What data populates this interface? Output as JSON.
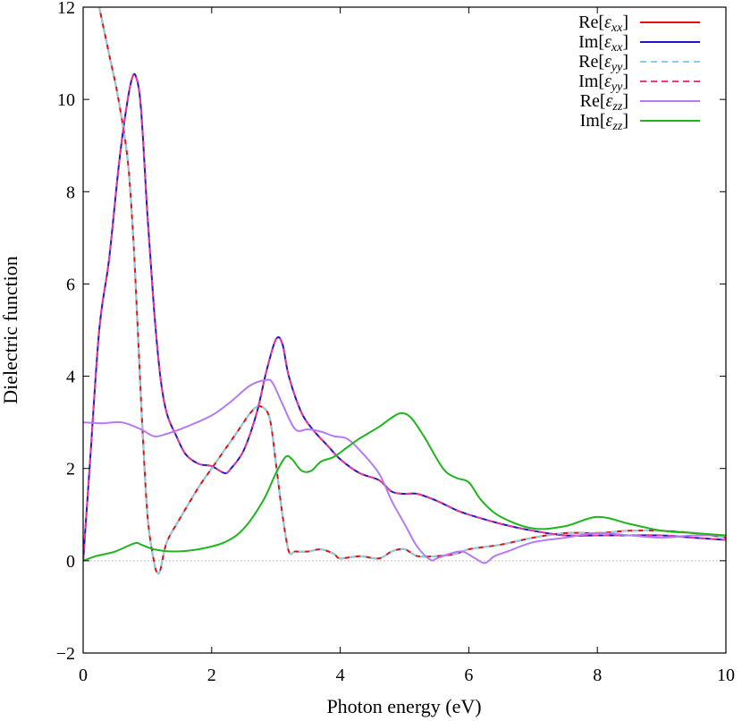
{
  "chart_data": {
    "type": "line",
    "title": "",
    "xlabel": "Photon energy (eV)",
    "ylabel": "Dielectric function",
    "xlim": [
      0,
      10
    ],
    "ylim": [
      -2,
      12
    ],
    "xticks": [
      0,
      2,
      4,
      6,
      8,
      10
    ],
    "yticks": [
      -2,
      0,
      2,
      4,
      6,
      8,
      10,
      12
    ],
    "xtick_labels": [
      "0",
      "2",
      "4",
      "6",
      "8",
      "10"
    ],
    "ytick_labels": [
      "−2",
      "0",
      "2",
      "4",
      "6",
      "8",
      "10",
      "12"
    ],
    "grid": false,
    "zero_line": true,
    "legend_position": "top-right",
    "series": [
      {
        "name": "Re[εxx]",
        "legend_prefix": "Re[",
        "legend_sym": "ε",
        "legend_sub": "xx",
        "legend_suffix": "]",
        "color": "#dd1111",
        "dash": "solid",
        "x": [
          0.25,
          0.4,
          0.55,
          0.7,
          0.8,
          0.9,
          1.0,
          1.1,
          1.15,
          1.2,
          1.3,
          1.5,
          1.8,
          2.0,
          2.2,
          2.4,
          2.6,
          2.75,
          2.9,
          3.0,
          3.1,
          3.2,
          3.3,
          3.5,
          3.7,
          3.9,
          4.0,
          4.3,
          4.6,
          4.8,
          5.0,
          5.2,
          5.5,
          5.8,
          6.0,
          6.5,
          7.0,
          7.5,
          8.0,
          8.5,
          9.0,
          9.5,
          10.0
        ],
        "y": [
          12.0,
          11.0,
          10.0,
          8.6,
          6.5,
          3.5,
          1.0,
          0.0,
          -0.25,
          -0.2,
          0.4,
          0.9,
          1.6,
          2.0,
          2.4,
          2.8,
          3.2,
          3.35,
          3.1,
          2.1,
          1.0,
          0.2,
          0.2,
          0.2,
          0.25,
          0.15,
          0.05,
          0.1,
          0.05,
          0.2,
          0.25,
          0.1,
          0.1,
          0.15,
          0.25,
          0.35,
          0.5,
          0.6,
          0.6,
          0.65,
          0.65,
          0.6,
          0.5
        ]
      },
      {
        "name": "Im[εxx]",
        "legend_prefix": "Im[",
        "legend_sym": "ε",
        "legend_sub": "xx",
        "legend_suffix": "]",
        "color": "#1a1acc",
        "dash": "solid",
        "x": [
          0.0,
          0.1,
          0.25,
          0.4,
          0.55,
          0.65,
          0.75,
          0.82,
          0.9,
          1.0,
          1.1,
          1.2,
          1.3,
          1.45,
          1.6,
          1.8,
          2.0,
          2.2,
          2.3,
          2.5,
          2.7,
          2.85,
          3.0,
          3.1,
          3.2,
          3.4,
          3.6,
          3.8,
          4.0,
          4.3,
          4.6,
          4.8,
          5.0,
          5.2,
          5.5,
          5.8,
          6.0,
          6.5,
          7.0,
          7.5,
          8.0,
          8.5,
          9.0,
          9.5,
          10.0
        ],
        "y": [
          0.0,
          2.0,
          5.0,
          6.5,
          8.5,
          9.6,
          10.4,
          10.5,
          9.8,
          7.5,
          5.5,
          4.0,
          3.2,
          2.7,
          2.3,
          2.1,
          2.05,
          1.9,
          2.0,
          2.4,
          3.2,
          4.1,
          4.8,
          4.7,
          4.0,
          3.2,
          2.8,
          2.5,
          2.2,
          1.9,
          1.75,
          1.5,
          1.45,
          1.45,
          1.3,
          1.1,
          1.0,
          0.8,
          0.65,
          0.55,
          0.55,
          0.55,
          0.55,
          0.5,
          0.45
        ]
      },
      {
        "name": "Re[εyy]",
        "legend_prefix": "Re[",
        "legend_sym": "ε",
        "legend_sub": "yy",
        "legend_suffix": "]",
        "color": "#8fcde0",
        "dash": "dashed",
        "x": [
          0.25,
          0.4,
          0.55,
          0.7,
          0.8,
          0.9,
          1.0,
          1.1,
          1.15,
          1.2,
          1.3,
          1.5,
          1.8,
          2.0,
          2.2,
          2.4,
          2.6,
          2.75,
          2.9,
          3.0,
          3.1,
          3.2,
          3.3,
          3.5,
          3.7,
          3.9,
          4.0,
          4.3,
          4.6,
          4.8,
          5.0,
          5.2,
          5.5,
          5.8,
          6.0,
          6.5,
          7.0,
          7.5,
          8.0,
          8.5,
          9.0,
          9.5,
          10.0
        ],
        "y": [
          12.0,
          11.0,
          10.0,
          8.6,
          6.5,
          3.5,
          1.0,
          0.0,
          -0.25,
          -0.2,
          0.4,
          0.9,
          1.6,
          2.0,
          2.4,
          2.8,
          3.2,
          3.35,
          3.1,
          2.1,
          1.0,
          0.2,
          0.2,
          0.2,
          0.25,
          0.15,
          0.05,
          0.1,
          0.05,
          0.2,
          0.25,
          0.1,
          0.1,
          0.15,
          0.25,
          0.35,
          0.5,
          0.6,
          0.6,
          0.65,
          0.65,
          0.6,
          0.5
        ]
      },
      {
        "name": "Im[εyy]",
        "legend_prefix": "Im[",
        "legend_sym": "ε",
        "legend_sub": "yy",
        "legend_suffix": "]",
        "color": "#e8398f",
        "dash": "dashed",
        "x": [
          0.0,
          0.1,
          0.25,
          0.4,
          0.55,
          0.65,
          0.75,
          0.82,
          0.9,
          1.0,
          1.1,
          1.2,
          1.3,
          1.45,
          1.6,
          1.8,
          2.0,
          2.2,
          2.3,
          2.5,
          2.7,
          2.85,
          3.0,
          3.1,
          3.2,
          3.4,
          3.6,
          3.8,
          4.0,
          4.3,
          4.6,
          4.8,
          5.0,
          5.2,
          5.5,
          5.8,
          6.0,
          6.5,
          7.0,
          7.5,
          8.0,
          8.5,
          9.0,
          9.5,
          10.0
        ],
        "y": [
          0.0,
          2.0,
          5.0,
          6.5,
          8.5,
          9.6,
          10.4,
          10.5,
          9.8,
          7.5,
          5.5,
          4.0,
          3.2,
          2.7,
          2.3,
          2.1,
          2.05,
          1.9,
          2.0,
          2.4,
          3.2,
          4.1,
          4.8,
          4.7,
          4.0,
          3.2,
          2.8,
          2.5,
          2.2,
          1.9,
          1.75,
          1.5,
          1.45,
          1.45,
          1.3,
          1.1,
          1.0,
          0.8,
          0.65,
          0.55,
          0.55,
          0.55,
          0.55,
          0.5,
          0.45
        ]
      },
      {
        "name": "Re[εzz]",
        "legend_prefix": "Re[",
        "legend_sym": "ε",
        "legend_sub": "zz",
        "legend_suffix": "]",
        "color": "#b57bf0",
        "dash": "solid",
        "x": [
          0.0,
          0.3,
          0.6,
          0.9,
          1.1,
          1.3,
          1.6,
          2.0,
          2.3,
          2.6,
          2.85,
          2.95,
          3.1,
          3.3,
          3.5,
          3.7,
          3.9,
          4.1,
          4.3,
          4.6,
          4.8,
          5.0,
          5.2,
          5.4,
          5.5,
          5.7,
          5.9,
          6.1,
          6.25,
          6.4,
          6.6,
          7.0,
          7.5,
          8.0,
          8.5,
          9.0,
          9.5,
          10.0
        ],
        "y": [
          3.0,
          2.98,
          3.0,
          2.85,
          2.7,
          2.75,
          2.9,
          3.15,
          3.45,
          3.8,
          3.92,
          3.85,
          3.4,
          2.85,
          2.85,
          2.8,
          2.7,
          2.65,
          2.4,
          1.9,
          1.3,
          0.8,
          0.3,
          0.02,
          0.05,
          0.15,
          0.2,
          0.05,
          -0.05,
          0.1,
          0.2,
          0.4,
          0.5,
          0.6,
          0.55,
          0.5,
          0.55,
          0.55
        ]
      },
      {
        "name": "Im[εzz]",
        "legend_prefix": "Im[",
        "legend_sym": "ε",
        "legend_sub": "zz",
        "legend_suffix": "]",
        "color": "#1fb51f",
        "dash": "solid",
        "x": [
          0.0,
          0.2,
          0.5,
          0.8,
          0.9,
          1.1,
          1.4,
          1.8,
          2.2,
          2.5,
          2.8,
          3.0,
          3.15,
          3.25,
          3.4,
          3.55,
          3.7,
          3.9,
          4.1,
          4.3,
          4.6,
          4.8,
          4.95,
          5.1,
          5.3,
          5.6,
          5.8,
          6.0,
          6.2,
          6.5,
          7.0,
          7.5,
          8.0,
          8.5,
          9.0,
          9.5,
          10.0
        ],
        "y": [
          0.0,
          0.1,
          0.2,
          0.38,
          0.35,
          0.25,
          0.2,
          0.25,
          0.4,
          0.7,
          1.3,
          1.9,
          2.25,
          2.2,
          1.95,
          1.95,
          2.15,
          2.25,
          2.45,
          2.65,
          2.9,
          3.1,
          3.2,
          3.1,
          2.7,
          2.0,
          1.8,
          1.7,
          1.3,
          0.95,
          0.7,
          0.75,
          0.95,
          0.8,
          0.65,
          0.6,
          0.55
        ]
      }
    ]
  }
}
